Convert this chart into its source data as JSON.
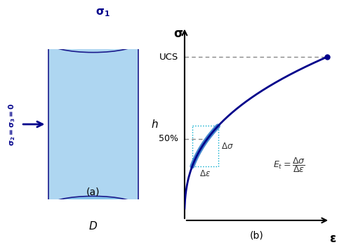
{
  "bg_color": "#ffffff",
  "cylinder_color": "#aed6f1",
  "cylinder_edge_color": "#1a1a8c",
  "arrow_color": "#00008b",
  "curve_color": "#00008b",
  "highlight_color": "#4169e1",
  "dashed_color": "#888888",
  "cyan_color": "#00bcd4",
  "label_a": "(a)",
  "label_b": "(b)",
  "sigma_label": "σ",
  "epsilon_label": "ε",
  "ucs_label": "UCS",
  "fifty_label": "50%",
  "delta_sigma": "Δσ",
  "delta_epsilon": "Δε",
  "Et_label": "E_t",
  "sigma1_label": "σ₁",
  "sigma23_label": "σ₂=σ₃=0"
}
